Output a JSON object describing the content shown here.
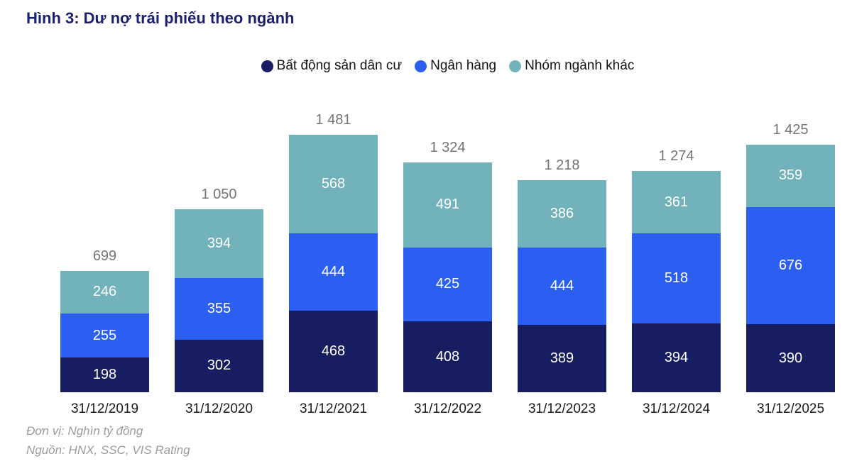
{
  "title": "Hình 3: Dư nợ trái phiếu theo ngành",
  "footer": {
    "unit": "Đơn vị: Nghìn tỷ đồng",
    "source": "Nguồn: HNX, SSC, VIS Rating"
  },
  "colors": {
    "title_text": "#1b2170",
    "total_label": "#757575",
    "segment_label": "#ffffff",
    "x_axis_label": "#1a1a1a",
    "footer_text": "#9c9c9c",
    "background": "#ffffff"
  },
  "chart_data": {
    "type": "bar",
    "stacked": true,
    "title": "Hình 3: Dư nợ trái phiếu theo ngành",
    "unit": "Nghìn tỷ đồng",
    "categories": [
      "31/12/2019",
      "31/12/2020",
      "31/12/2021",
      "31/12/2022",
      "31/12/2023",
      "31/12/2024",
      "31/12/2025"
    ],
    "series": [
      {
        "name": "Bất động sản dân cư",
        "color": "#171d61",
        "values": [
          198,
          302,
          468,
          408,
          389,
          394,
          390
        ]
      },
      {
        "name": "Ngân hàng",
        "color": "#2b5ff2",
        "values": [
          255,
          355,
          444,
          425,
          444,
          518,
          676
        ]
      },
      {
        "name": "Nhóm ngành khác",
        "color": "#72b2ba",
        "values": [
          246,
          394,
          568,
          491,
          386,
          361,
          359
        ]
      }
    ],
    "totals": [
      "699",
      "1 050",
      "1 481",
      "1 324",
      "1 218",
      "1 274",
      "1 425"
    ],
    "legend_position": "top",
    "grid": false,
    "value_labels": "inside-white",
    "ylim": [
      0,
      1481
    ]
  }
}
